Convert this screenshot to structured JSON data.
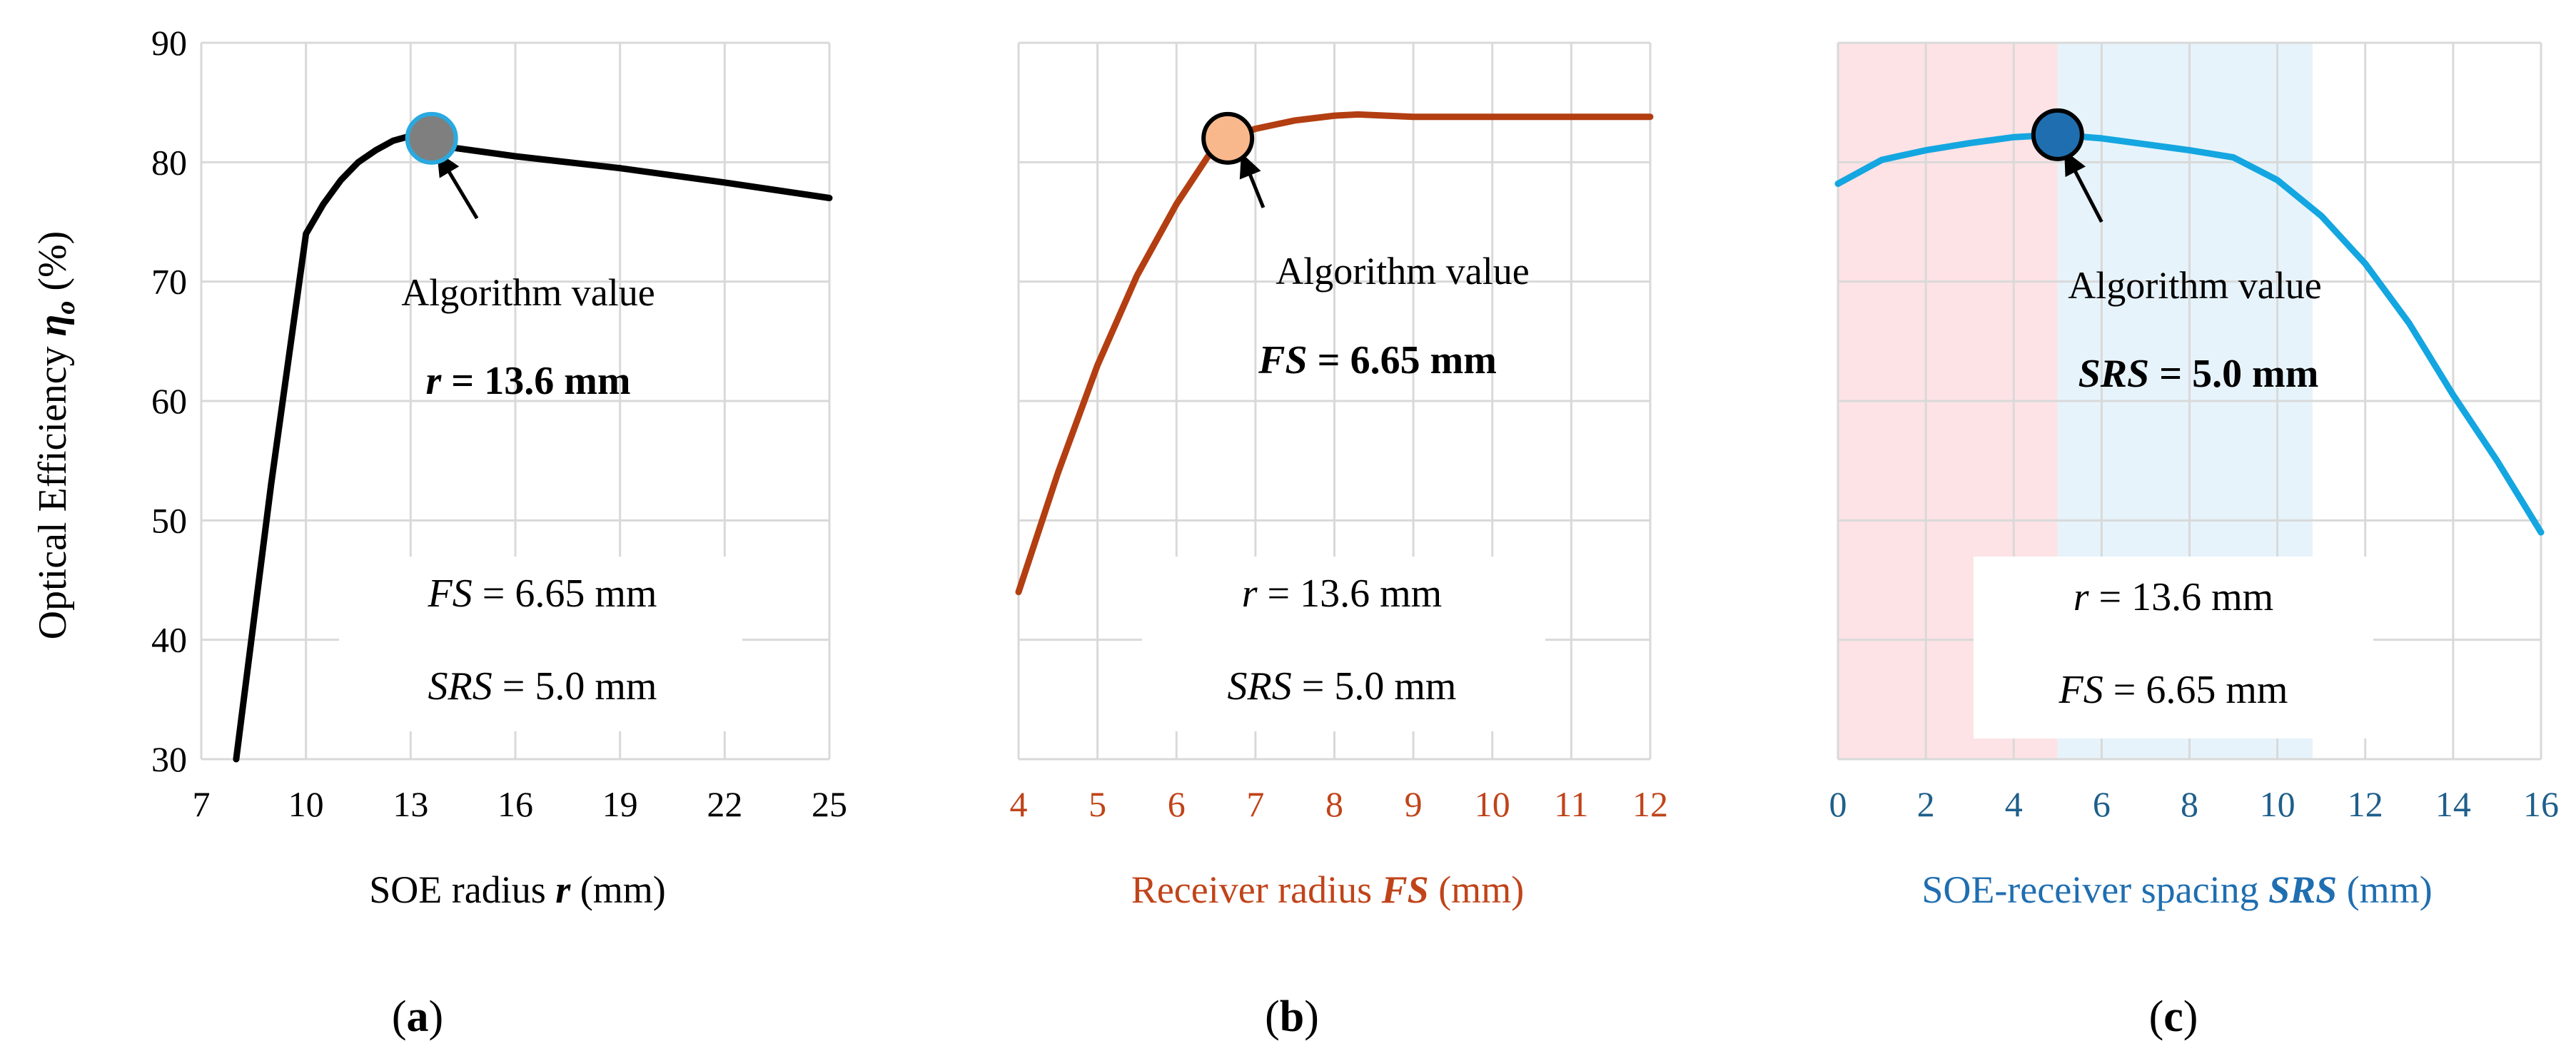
{
  "chart_data": [
    {
      "id": "a",
      "type": "line",
      "panel_label": "a",
      "xlabel": "SOE radius",
      "xlabel_var": "r",
      "xlabel_unit": "(mm)",
      "ylabel": "Optical Efficiency",
      "ylabel_var": "η",
      "ylabel_sub": "o",
      "ylabel_unit": "(%)",
      "xlim": [
        7,
        25
      ],
      "ylim": [
        30,
        90
      ],
      "xticks": [
        7,
        10,
        13,
        16,
        19,
        22,
        25
      ],
      "yticks": [
        30,
        40,
        50,
        60,
        70,
        80,
        90
      ],
      "line_color": "#000000",
      "tick_color": "#000000",
      "x": [
        8.0,
        9.0,
        10.0,
        10.5,
        11.0,
        11.5,
        12.0,
        12.5,
        13.0,
        13.6,
        14.0,
        16.0,
        19.0,
        22.0,
        25.0
      ],
      "y": [
        30.0,
        53.0,
        74.0,
        76.5,
        78.5,
        80.0,
        81.0,
        81.8,
        82.2,
        82.0,
        81.3,
        80.5,
        79.5,
        78.3,
        77.0
      ],
      "marker": {
        "x": 13.6,
        "y": 82.0,
        "fill": "#7f7f7f",
        "stroke": "#29a9e0"
      },
      "arrow": {
        "from": [
          14.9,
          75.3
        ],
        "to": [
          13.75,
          80.9
        ]
      },
      "annotation": "Algorithm value",
      "highlight": {
        "var": "r",
        "eq": " = ",
        "value": "13.6 mm"
      },
      "params": [
        {
          "var": "FS",
          "eq": " = ",
          "value": "6.65 mm"
        },
        {
          "var": "SRS",
          "eq": " = ",
          "value": "5.0 mm"
        }
      ]
    },
    {
      "id": "b",
      "type": "line",
      "panel_label": "b",
      "xlabel": "Receiver radius",
      "xlabel_var": "FS",
      "xlabel_unit": "(mm)",
      "xlim": [
        4,
        12
      ],
      "ylim": [
        30,
        90
      ],
      "xticks": [
        4,
        5,
        6,
        7,
        8,
        9,
        10,
        11,
        12
      ],
      "yticks": [
        30,
        40,
        50,
        60,
        70,
        80,
        90
      ],
      "line_color": "#b33e11",
      "tick_color": "#c0441a",
      "x": [
        4.0,
        4.5,
        5.0,
        5.5,
        6.0,
        6.4,
        6.65,
        7.0,
        7.5,
        8.0,
        8.3,
        9.0,
        10.0,
        11.0,
        12.0
      ],
      "y": [
        44.0,
        54.0,
        63.0,
        70.5,
        76.5,
        80.5,
        82.0,
        82.8,
        83.5,
        83.9,
        84.0,
        83.8,
        83.8,
        83.8,
        83.8
      ],
      "marker": {
        "x": 6.65,
        "y": 82.0,
        "fill": "#f8b88c",
        "stroke": "#000000"
      },
      "arrow": {
        "from": [
          7.1,
          76.2
        ],
        "to": [
          6.82,
          80.8
        ]
      },
      "annotation": "Algorithm value",
      "highlight": {
        "var": "FS",
        "eq": " = ",
        "value": "6.65 mm"
      },
      "params": [
        {
          "var": "r",
          "eq": " = ",
          "value": "13.6 mm"
        },
        {
          "var": "SRS",
          "eq": " = ",
          "value": "5.0 mm"
        }
      ]
    },
    {
      "id": "c",
      "type": "line",
      "panel_label": "c",
      "xlabel": "SOE-receiver spacing",
      "xlabel_var": "SRS",
      "xlabel_unit": "(mm)",
      "xlim": [
        0,
        16
      ],
      "ylim": [
        30,
        90
      ],
      "xticks": [
        0,
        2,
        4,
        6,
        8,
        10,
        12,
        14,
        16
      ],
      "yticks": [
        30,
        40,
        50,
        60,
        70,
        80,
        90
      ],
      "line_color": "#14a6e0",
      "tick_color": "#1f5f8b",
      "x": [
        0.0,
        1.0,
        2.0,
        3.0,
        4.0,
        5.0,
        6.0,
        7.0,
        8.0,
        9.0,
        10.0,
        11.0,
        12.0,
        13.0,
        14.0,
        15.0,
        16.0
      ],
      "y": [
        78.2,
        80.2,
        81.0,
        81.6,
        82.1,
        82.3,
        82.0,
        81.5,
        81.0,
        80.4,
        78.5,
        75.5,
        71.5,
        66.5,
        60.5,
        55.0,
        49.0
      ],
      "marker": {
        "x": 5.0,
        "y": 82.3,
        "fill": "#1f6eb0",
        "stroke": "#000000"
      },
      "arrow": {
        "from": [
          6.0,
          75.0
        ],
        "to": [
          5.15,
          81.0
        ]
      },
      "shaded_regions": [
        {
          "x0": 0,
          "x1": 5,
          "color": "#fde3e6"
        },
        {
          "x0": 5,
          "x1": 10.8,
          "color": "#e6f3fb"
        }
      ],
      "annotation": "Algorithm value",
      "highlight": {
        "var": "SRS",
        "eq": " = ",
        "value": "5.0 mm"
      },
      "params": [
        {
          "var": "r",
          "eq": " = ",
          "value": "13.6 mm"
        },
        {
          "var": "FS",
          "eq": " = ",
          "value": "6.65 mm"
        }
      ]
    }
  ]
}
